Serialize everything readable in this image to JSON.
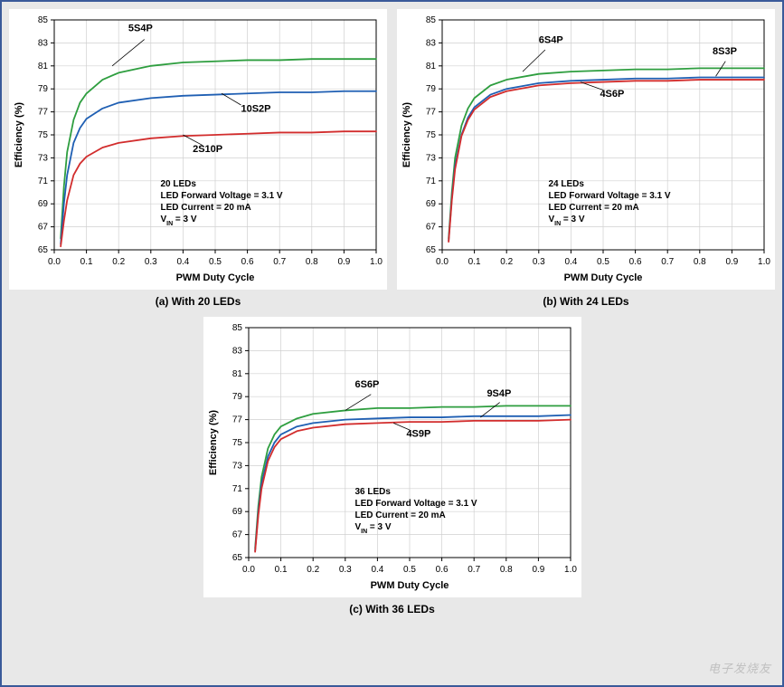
{
  "outer_border_color": "#3a5a9a",
  "background_color": "#e8e8e8",
  "panel_bg": "#ffffff",
  "grid_color": "#d0d0d0",
  "axis_color": "#000000",
  "axis_fontsize": 11,
  "tick_fontsize": 10,
  "label_fontsize": 11,
  "info_fontsize": 10,
  "line_width": 1.8,
  "watermark": "电子发烧友",
  "charts": {
    "a": {
      "caption": "(a) With 20 LEDs",
      "xlabel": "PWM Duty Cycle",
      "ylabel": "Efficiency (%)",
      "xlim": [
        0.0,
        1.0
      ],
      "ylim": [
        65,
        85
      ],
      "xtick_step": 0.1,
      "ytick_step": 2,
      "info": [
        "20 LEDs",
        "LED Forward Voltage = 3.1 V",
        "LED Current = 20 mA",
        "V_IN = 3 V"
      ],
      "series": [
        {
          "name": "5S4P",
          "color": "#2e9e3f",
          "label_x": 0.23,
          "label_y": 84,
          "leader": {
            "from": [
              0.28,
              83.3
            ],
            "to": [
              0.18,
              81.0
            ]
          },
          "x": [
            0.02,
            0.03,
            0.04,
            0.06,
            0.08,
            0.1,
            0.15,
            0.2,
            0.3,
            0.4,
            0.5,
            0.6,
            0.7,
            0.8,
            0.9,
            1.0
          ],
          "y": [
            66.0,
            70.5,
            73.5,
            76.3,
            77.8,
            78.6,
            79.8,
            80.4,
            81.0,
            81.3,
            81.4,
            81.5,
            81.5,
            81.6,
            81.6,
            81.6
          ]
        },
        {
          "name": "10S2P",
          "color": "#1f5fb3",
          "label_x": 0.58,
          "label_y": 77,
          "leader": {
            "from": [
              0.58,
              77.6
            ],
            "to": [
              0.52,
              78.6
            ]
          },
          "x": [
            0.02,
            0.03,
            0.04,
            0.06,
            0.08,
            0.1,
            0.15,
            0.2,
            0.3,
            0.4,
            0.5,
            0.6,
            0.7,
            0.8,
            0.9,
            1.0
          ],
          "y": [
            65.5,
            69.0,
            71.5,
            74.3,
            75.6,
            76.4,
            77.3,
            77.8,
            78.2,
            78.4,
            78.5,
            78.6,
            78.7,
            78.7,
            78.8,
            78.8
          ]
        },
        {
          "name": "2S10P",
          "color": "#d22d2d",
          "label_x": 0.43,
          "label_y": 73.5,
          "leader": {
            "from": [
              0.46,
              74.1
            ],
            "to": [
              0.4,
              75.0
            ]
          },
          "x": [
            0.02,
            0.03,
            0.04,
            0.06,
            0.08,
            0.1,
            0.15,
            0.2,
            0.3,
            0.4,
            0.5,
            0.6,
            0.7,
            0.8,
            0.9,
            1.0
          ],
          "y": [
            65.3,
            67.5,
            69.3,
            71.5,
            72.5,
            73.1,
            73.9,
            74.3,
            74.7,
            74.9,
            75.0,
            75.1,
            75.2,
            75.2,
            75.3,
            75.3
          ]
        }
      ]
    },
    "b": {
      "caption": "(b) With 24 LEDs",
      "xlabel": "PWM Duty Cycle",
      "ylabel": "Efficiency (%)",
      "xlim": [
        0.0,
        1.0
      ],
      "ylim": [
        65,
        85
      ],
      "xtick_step": 0.1,
      "ytick_step": 2,
      "info": [
        "24 LEDs",
        "LED Forward Voltage = 3.1 V",
        "LED Current = 20 mA",
        "V_IN = 3 V"
      ],
      "series": [
        {
          "name": "6S4P",
          "color": "#2e9e3f",
          "label_x": 0.3,
          "label_y": 83,
          "leader": {
            "from": [
              0.32,
              82.4
            ],
            "to": [
              0.25,
              80.5
            ]
          },
          "x": [
            0.02,
            0.03,
            0.04,
            0.06,
            0.08,
            0.1,
            0.15,
            0.2,
            0.3,
            0.4,
            0.5,
            0.6,
            0.7,
            0.8,
            0.9,
            1.0
          ],
          "y": [
            66.0,
            70.0,
            73.0,
            75.8,
            77.3,
            78.2,
            79.3,
            79.8,
            80.3,
            80.5,
            80.6,
            80.7,
            80.7,
            80.8,
            80.8,
            80.8
          ]
        },
        {
          "name": "8S3P",
          "color": "#1f5fb3",
          "label_x": 0.84,
          "label_y": 82,
          "leader": {
            "from": [
              0.88,
              81.4
            ],
            "to": [
              0.85,
              80.1
            ]
          },
          "x": [
            0.02,
            0.03,
            0.04,
            0.06,
            0.08,
            0.1,
            0.15,
            0.2,
            0.3,
            0.4,
            0.5,
            0.6,
            0.7,
            0.8,
            0.9,
            1.0
          ],
          "y": [
            65.8,
            69.5,
            72.3,
            75.0,
            76.5,
            77.4,
            78.5,
            79.0,
            79.5,
            79.7,
            79.8,
            79.9,
            79.9,
            80.0,
            80.0,
            80.0
          ]
        },
        {
          "name": "4S6P",
          "color": "#d22d2d",
          "label_x": 0.49,
          "label_y": 78.3,
          "leader": {
            "from": [
              0.5,
              78.9
            ],
            "to": [
              0.43,
              79.6
            ]
          },
          "x": [
            0.02,
            0.03,
            0.04,
            0.06,
            0.08,
            0.1,
            0.15,
            0.2,
            0.3,
            0.4,
            0.5,
            0.6,
            0.7,
            0.8,
            0.9,
            1.0
          ],
          "y": [
            65.7,
            69.3,
            72.0,
            74.9,
            76.3,
            77.2,
            78.3,
            78.8,
            79.3,
            79.5,
            79.6,
            79.7,
            79.7,
            79.8,
            79.8,
            79.8
          ]
        }
      ]
    },
    "c": {
      "caption": "(c) With 36 LEDs",
      "xlabel": "PWM Duty Cycle",
      "ylabel": "Efficiency (%)",
      "xlim": [
        0.0,
        1.0
      ],
      "ylim": [
        65,
        85
      ],
      "xtick_step": 0.1,
      "ytick_step": 2,
      "info": [
        "36 LEDs",
        "LED Forward Voltage = 3.1 V",
        "LED Current = 20 mA",
        "V_IN = 3 V"
      ],
      "series": [
        {
          "name": "6S6P",
          "color": "#2e9e3f",
          "label_x": 0.33,
          "label_y": 79.8,
          "leader": {
            "from": [
              0.38,
              79.2
            ],
            "to": [
              0.3,
              77.8
            ]
          },
          "x": [
            0.02,
            0.03,
            0.04,
            0.06,
            0.08,
            0.1,
            0.15,
            0.2,
            0.3,
            0.4,
            0.5,
            0.6,
            0.7,
            0.8,
            0.9,
            1.0
          ],
          "y": [
            65.8,
            69.5,
            72.0,
            74.5,
            75.7,
            76.4,
            77.1,
            77.5,
            77.8,
            78.0,
            78.0,
            78.1,
            78.1,
            78.2,
            78.2,
            78.2
          ]
        },
        {
          "name": "9S4P",
          "color": "#1f5fb3",
          "label_x": 0.74,
          "label_y": 79,
          "leader": {
            "from": [
              0.78,
              78.5
            ],
            "to": [
              0.72,
              77.2
            ]
          },
          "x": [
            0.02,
            0.03,
            0.04,
            0.06,
            0.08,
            0.1,
            0.15,
            0.2,
            0.3,
            0.4,
            0.5,
            0.6,
            0.7,
            0.8,
            0.9,
            1.0
          ],
          "y": [
            65.6,
            69.0,
            71.4,
            73.8,
            75.0,
            75.7,
            76.4,
            76.7,
            77.0,
            77.1,
            77.2,
            77.2,
            77.3,
            77.3,
            77.3,
            77.4
          ]
        },
        {
          "name": "4S9P",
          "color": "#d22d2d",
          "label_x": 0.49,
          "label_y": 75.5,
          "leader": {
            "from": [
              0.5,
              76.1
            ],
            "to": [
              0.45,
              76.7
            ]
          },
          "x": [
            0.02,
            0.03,
            0.04,
            0.06,
            0.08,
            0.1,
            0.15,
            0.2,
            0.3,
            0.4,
            0.5,
            0.6,
            0.7,
            0.8,
            0.9,
            1.0
          ],
          "y": [
            65.5,
            68.7,
            71.0,
            73.4,
            74.6,
            75.3,
            76.0,
            76.3,
            76.6,
            76.7,
            76.8,
            76.8,
            76.9,
            76.9,
            76.9,
            77.0
          ]
        }
      ]
    }
  }
}
